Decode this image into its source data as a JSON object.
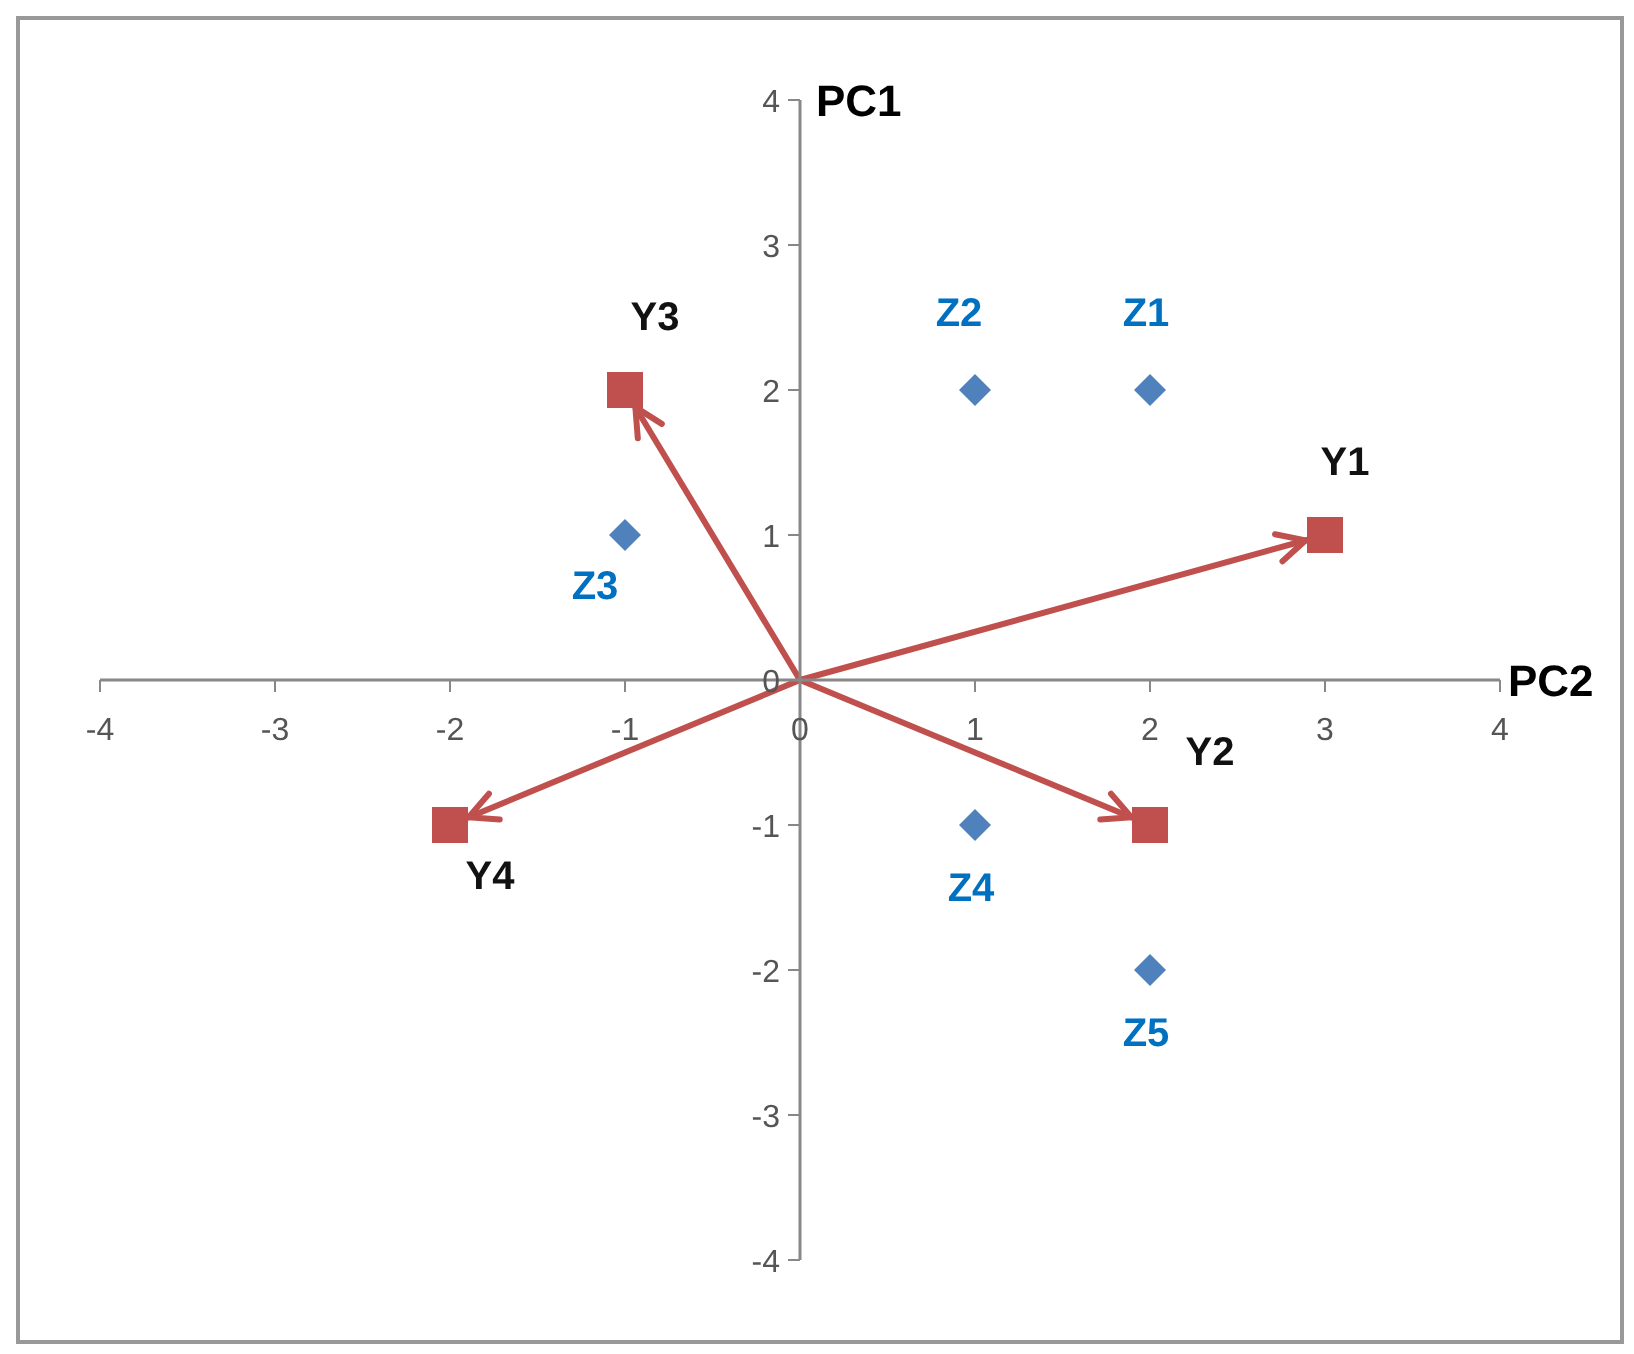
{
  "chart_data": {
    "type": "scatter",
    "xlabel": "PC2",
    "ylabel": "PC1",
    "xlim": [
      -4,
      4
    ],
    "ylim": [
      -4,
      4
    ],
    "xticks": [
      -4,
      -3,
      -2,
      -1,
      0,
      1,
      2,
      3,
      4
    ],
    "yticks": [
      -4,
      -3,
      -2,
      -1,
      0,
      1,
      2,
      3,
      4
    ],
    "grid": false,
    "legend": false,
    "series": [
      {
        "type": "line",
        "color": "#c0504d",
        "x": [
          -2,
          0,
          3
        ],
        "values": [
          -1,
          0,
          1
        ],
        "marker": "none"
      },
      {
        "type": "line",
        "color": "#c0504d",
        "x": [
          -1,
          0,
          2
        ],
        "values": [
          2,
          0,
          -1
        ],
        "marker": "none"
      },
      {
        "color": "#c0504d",
        "marker": "square",
        "x": [
          3,
          2,
          -1,
          -2
        ],
        "values": [
          1,
          -1,
          2,
          -1
        ],
        "value_labels": [
          "Y1",
          "Y2",
          "Y3",
          "Y4"
        ]
      },
      {
        "color": "#4f81bd",
        "marker": "diamond",
        "x": [
          2,
          1,
          -1,
          1,
          2
        ],
        "values": [
          2,
          2,
          1,
          -1,
          -2
        ],
        "value_labels": [
          "Z1",
          "Z2",
          "Z3",
          "Z4",
          "Z5"
        ]
      }
    ]
  }
}
